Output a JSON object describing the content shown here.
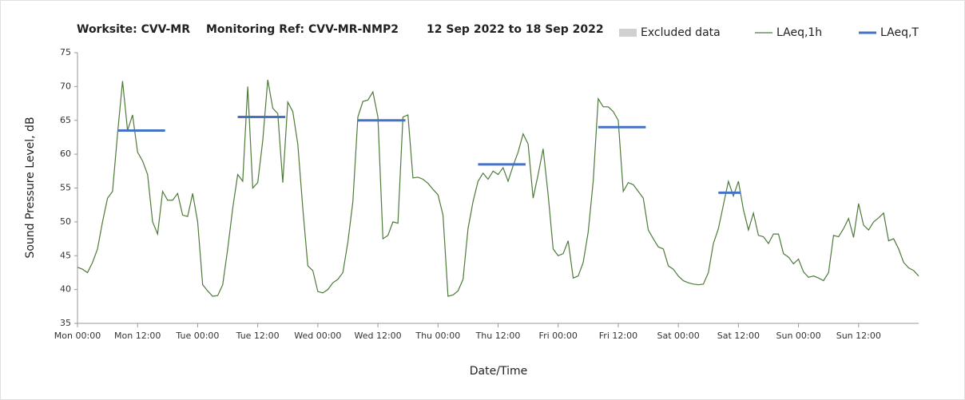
{
  "chart_data": {
    "type": "line",
    "title": "Worksite: CVV-MR",
    "subtitle": "Monitoring Ref: CVV-MR-NMP2",
    "date_range": "12 Sep 2022 to 18 Sep 2022",
    "x_label": "Date/Time",
    "y_label": "Sound Pressure Level, dB",
    "xlim": [
      0,
      168
    ],
    "xticks": [
      {
        "value": 0,
        "label": "Mon 00:00"
      },
      {
        "value": 12,
        "label": "Mon 12:00"
      },
      {
        "value": 24,
        "label": "Tue 00:00"
      },
      {
        "value": 36,
        "label": "Tue 12:00"
      },
      {
        "value": 48,
        "label": "Wed 00:00"
      },
      {
        "value": 60,
        "label": "Wed 12:00"
      },
      {
        "value": 72,
        "label": "Thu 00:00"
      },
      {
        "value": 84,
        "label": "Thu 12:00"
      },
      {
        "value": 96,
        "label": "Fri 00:00"
      },
      {
        "value": 108,
        "label": "Fri 12:00"
      },
      {
        "value": 120,
        "label": "Sat 00:00"
      },
      {
        "value": 132,
        "label": "Sat 12:00"
      },
      {
        "value": 144,
        "label": "Sun 00:00"
      },
      {
        "value": 156,
        "label": "Sun 12:00"
      }
    ],
    "ylim": [
      35,
      75
    ],
    "yticks": [
      35,
      40,
      45,
      50,
      55,
      60,
      65,
      70,
      75
    ],
    "grid": false,
    "legend": "top-right",
    "series": [
      {
        "name": "Excluded data",
        "color": "#d0d0d0",
        "kind": "area",
        "values": []
      },
      {
        "name": "LAeq,1h",
        "color": "#4e7a3a",
        "kind": "line",
        "x": [
          0,
          1,
          2,
          3,
          4,
          5,
          6,
          7,
          8,
          9,
          10,
          11,
          12,
          13,
          14,
          15,
          16,
          17,
          18,
          19,
          20,
          21,
          22,
          23,
          24,
          25,
          26,
          27,
          28,
          29,
          30,
          31,
          32,
          33,
          34,
          35,
          36,
          37,
          38,
          39,
          40,
          41,
          42,
          43,
          44,
          45,
          46,
          47,
          48,
          49,
          50,
          51,
          52,
          53,
          54,
          55,
          56,
          57,
          58,
          59,
          60,
          61,
          62,
          63,
          64,
          65,
          66,
          67,
          68,
          69,
          70,
          71,
          72,
          73,
          74,
          75,
          76,
          77,
          78,
          79,
          80,
          81,
          82,
          83,
          84,
          85,
          86,
          87,
          88,
          89,
          90,
          91,
          92,
          93,
          94,
          95,
          96,
          97,
          98,
          99,
          100,
          101,
          102,
          103,
          104,
          105,
          106,
          107,
          108,
          109,
          110,
          111,
          112,
          113,
          114,
          115,
          116,
          117,
          118,
          119,
          120,
          121,
          122,
          123,
          124,
          125,
          126,
          127,
          128,
          129,
          130,
          131,
          132,
          133,
          134,
          135,
          136,
          137,
          138,
          139,
          140,
          141,
          142,
          143,
          144,
          145,
          146,
          147,
          148,
          149,
          150,
          151,
          152,
          153,
          154,
          155,
          156,
          157,
          158,
          159,
          160,
          161,
          162,
          163,
          164,
          165,
          166,
          167,
          168
        ],
        "values": [
          43.3,
          43,
          42.5,
          44,
          46,
          50,
          53.5,
          54.5,
          63,
          70.8,
          63.5,
          65.8,
          60.3,
          59,
          57,
          50,
          48.2,
          54.5,
          53.2,
          53.2,
          54.2,
          51,
          50.8,
          54.2,
          50,
          40.7,
          39.8,
          39,
          39.1,
          40.7,
          46,
          52,
          57,
          56,
          70,
          55,
          55.8,
          62,
          71,
          66.8,
          66,
          55.8,
          67.7,
          66.3,
          61.5,
          52,
          43.5,
          42.8,
          39.7,
          39.5,
          40,
          41,
          41.5,
          42.5,
          47,
          53,
          65.5,
          67.8,
          68,
          69.2,
          65.5,
          47.5,
          48,
          50,
          49.8,
          65.5,
          65.8,
          56.5,
          56.6,
          56.3,
          55.7,
          54.8,
          54,
          51,
          39,
          39.2,
          39.8,
          41.5,
          49,
          53,
          56,
          57.2,
          56.3,
          57.5,
          57,
          58,
          56,
          58.3,
          60.3,
          63,
          61.5,
          53.5,
          57,
          60.8,
          54,
          46,
          45,
          45.3,
          47.2,
          41.7,
          42,
          44,
          48.5,
          56,
          68.2,
          67,
          67,
          66.3,
          65,
          54.5,
          55.8,
          55.5,
          54.5,
          53.5,
          48.8,
          47.5,
          46.3,
          46,
          43.5,
          43,
          42,
          41.3,
          41,
          40.8,
          40.7,
          40.8,
          42.5,
          46.8,
          49,
          52.5,
          56,
          53.8,
          56,
          51.8,
          48.8,
          51.3,
          48,
          47.8,
          46.8,
          48.2,
          48.2,
          45.3,
          44.8,
          43.8,
          44.5,
          42.6,
          41.8,
          42,
          41.7,
          41.3,
          42.5,
          48,
          47.8,
          49,
          50.5,
          47.7,
          52.7,
          49.5,
          48.8,
          50,
          50.6,
          51.3,
          47.2,
          47.5,
          46,
          44,
          43.2,
          42.8,
          42
        ]
      },
      {
        "name": "LAeq,T",
        "color": "#4472c4",
        "kind": "segments",
        "segments": [
          {
            "x": [
              8,
              17.5
            ],
            "value": 63.5
          },
          {
            "x": [
              32,
              41.5
            ],
            "value": 65.5
          },
          {
            "x": [
              56,
              65.5
            ],
            "value": 65
          },
          {
            "x": [
              80,
              89.5
            ],
            "value": 58.5
          },
          {
            "x": [
              104,
              113.5
            ],
            "value": 64
          },
          {
            "x": [
              128,
              132.5
            ],
            "value": 54.3
          }
        ]
      }
    ]
  }
}
